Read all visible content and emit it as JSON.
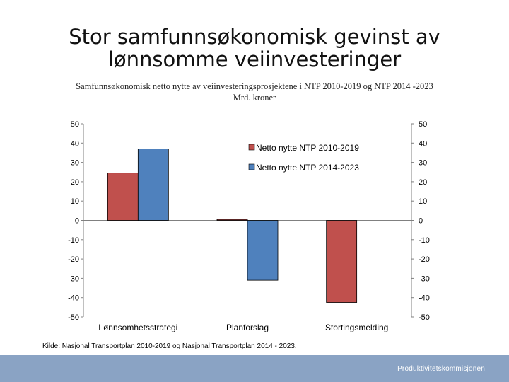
{
  "slide": {
    "title_line1": "Stor samfunnsøkonomisk gevinst av",
    "title_line2": "lønnsomme veiinvesteringer",
    "source": "Kilde: Nasjonal Transportplan 2010-2019 og Nasjonal Transportplan 2014 - 2023.",
    "footer_brand": "Produktivitetskommisjonen",
    "footer_color": "#8aa3c4"
  },
  "chart_data": {
    "type": "bar",
    "title": "Samfunnsøkonomisk netto nytte av veiinvesteringsprosjektene i NTP 2010-2019 og NTP 2014 -2023",
    "subtitle": "Mrd. kroner",
    "categories": [
      "Lønnsomhetsstrategi",
      "Planforslag",
      "Stortingsmelding"
    ],
    "series": [
      {
        "name": "Netto nytte NTP 2010-2019",
        "color": "#c0504d",
        "values": [
          24.5,
          0.5,
          -42.5
        ]
      },
      {
        "name": "Netto nytte NTP 2014-2023",
        "color": "#4f81bd",
        "values": [
          37,
          -31,
          null
        ]
      }
    ],
    "ylim": [
      -50,
      50
    ],
    "yticks": [
      50,
      40,
      30,
      20,
      10,
      0,
      -10,
      -20,
      -30,
      -40,
      -50
    ],
    "ytick_labels": [
      "50",
      "40",
      "30",
      "20",
      "10",
      "0",
      "-10",
      "-20",
      "-30",
      "-40",
      "-50"
    ],
    "axes": "left-and-right",
    "grid": false,
    "legend": "top-right-inside"
  }
}
